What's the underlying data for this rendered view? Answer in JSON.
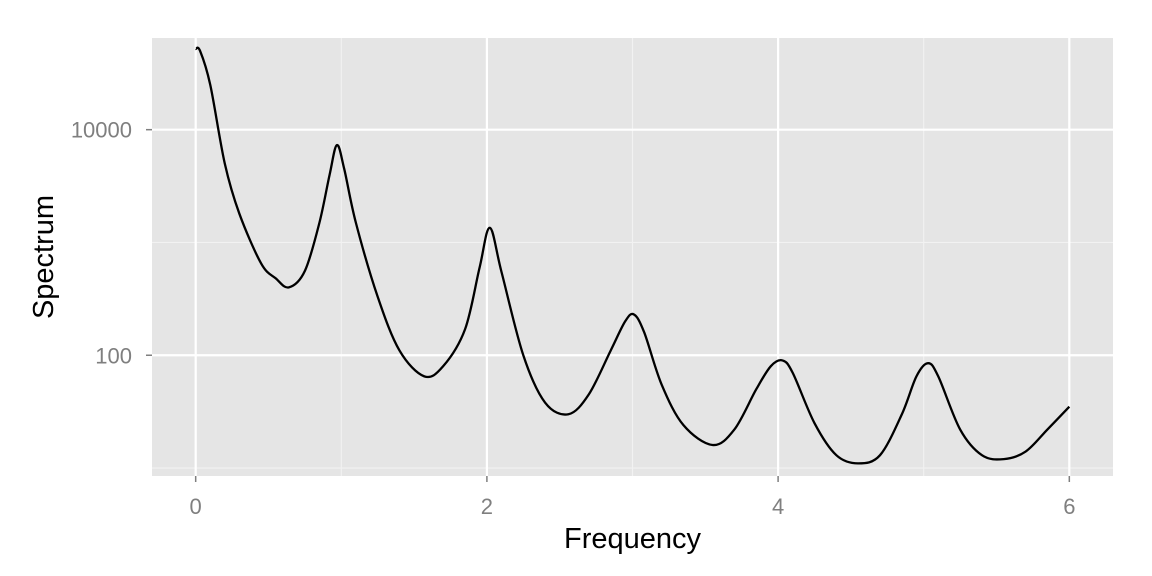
{
  "chart_data": {
    "type": "line",
    "title": "",
    "xlabel": "Frequency",
    "ylabel": "Spectrum",
    "xlim": [
      -0.3,
      6.3
    ],
    "ylim": [
      8.5,
      65000
    ],
    "y_scale": "log10",
    "x_ticks": [
      0,
      2,
      4,
      6
    ],
    "x_tick_labels": [
      "0",
      "2",
      "4",
      "6"
    ],
    "x_minor_ticks": [
      1,
      3,
      5
    ],
    "y_ticks": [
      100,
      10000
    ],
    "y_tick_labels": [
      "100",
      "10000"
    ],
    "y_minor_ticks": [
      10,
      1000
    ],
    "grid": true,
    "legend": "none",
    "colors": {
      "panel_background": "#e5e5e5",
      "grid_major": "#ffffff",
      "grid_minor": "#f2f2f2",
      "line": "#000000",
      "tick_label": "#7f7f7f"
    },
    "series": [
      {
        "x": [
          0.0,
          0.03,
          0.1,
          0.2,
          0.3,
          0.45,
          0.55,
          0.64,
          0.75,
          0.85,
          0.92,
          0.97,
          1.02,
          1.1,
          1.25,
          1.4,
          1.57,
          1.7,
          1.85,
          1.95,
          2.02,
          2.1,
          2.25,
          2.4,
          2.56,
          2.7,
          2.85,
          2.95,
          3.01,
          3.08,
          3.2,
          3.35,
          3.55,
          3.7,
          3.85,
          3.95,
          4.03,
          4.1,
          4.25,
          4.4,
          4.55,
          4.7,
          4.85,
          4.95,
          5.03,
          5.1,
          5.25,
          5.4,
          5.55,
          5.7,
          5.85,
          6.0
        ],
        "y": [
          52000,
          50000,
          25000,
          5000,
          1800,
          650,
          480,
          400,
          560,
          1500,
          4000,
          7300,
          4500,
          1500,
          330,
          110,
          65,
          80,
          170,
          600,
          1350,
          550,
          100,
          38,
          30,
          45,
          110,
          200,
          230,
          160,
          55,
          24,
          16,
          22,
          50,
          80,
          90,
          70,
          25,
          13,
          11,
          13,
          30,
          65,
          85,
          65,
          22,
          13,
          12,
          14,
          22,
          35
        ]
      }
    ]
  }
}
